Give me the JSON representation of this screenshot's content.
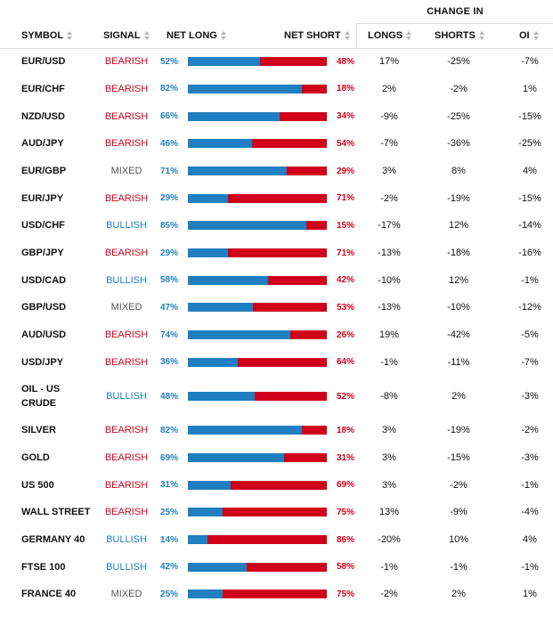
{
  "header": {
    "change_in": "CHANGE IN",
    "columns": {
      "symbol": "SYMBOL",
      "signal": "SIGNAL",
      "net_long": "NET LONG",
      "net_short": "NET SHORT",
      "longs": "LONGS",
      "shorts": "SHORTS",
      "oi": "OI"
    }
  },
  "colors": {
    "long": "#1f7fc0",
    "short": "#d0021b",
    "mixed": "#555555"
  },
  "rows": [
    {
      "symbol": "EUR/USD",
      "signal": "BEARISH",
      "net_long": "52%",
      "net_short": "48%",
      "long_fraction": 52,
      "change_longs": "17%",
      "change_shorts": "-25%",
      "change_oi": "-7%"
    },
    {
      "symbol": "EUR/CHF",
      "signal": "BEARISH",
      "net_long": "82%",
      "net_short": "18%",
      "long_fraction": 82,
      "change_longs": "2%",
      "change_shorts": "-2%",
      "change_oi": "1%"
    },
    {
      "symbol": "NZD/USD",
      "signal": "BEARISH",
      "net_long": "66%",
      "net_short": "34%",
      "long_fraction": 66,
      "change_longs": "-9%",
      "change_shorts": "-25%",
      "change_oi": "-15%"
    },
    {
      "symbol": "AUD/JPY",
      "signal": "BEARISH",
      "net_long": "46%",
      "net_short": "54%",
      "long_fraction": 46,
      "change_longs": "-7%",
      "change_shorts": "-36%",
      "change_oi": "-25%"
    },
    {
      "symbol": "EUR/GBP",
      "signal": "MIXED",
      "net_long": "71%",
      "net_short": "29%",
      "long_fraction": 71,
      "change_longs": "3%",
      "change_shorts": "8%",
      "change_oi": "4%"
    },
    {
      "symbol": "EUR/JPY",
      "signal": "BEARISH",
      "net_long": "29%",
      "net_short": "71%",
      "long_fraction": 29,
      "change_longs": "-2%",
      "change_shorts": "-19%",
      "change_oi": "-15%"
    },
    {
      "symbol": "USD/CHF",
      "signal": "BULLISH",
      "net_long": "85%",
      "net_short": "15%",
      "long_fraction": 85,
      "change_longs": "-17%",
      "change_shorts": "12%",
      "change_oi": "-14%"
    },
    {
      "symbol": "GBP/JPY",
      "signal": "BEARISH",
      "net_long": "29%",
      "net_short": "71%",
      "long_fraction": 29,
      "change_longs": "-13%",
      "change_shorts": "-18%",
      "change_oi": "-16%"
    },
    {
      "symbol": "USD/CAD",
      "signal": "BULLISH",
      "net_long": "58%",
      "net_short": "42%",
      "long_fraction": 58,
      "change_longs": "-10%",
      "change_shorts": "12%",
      "change_oi": "-1%"
    },
    {
      "symbol": "GBP/USD",
      "signal": "MIXED",
      "net_long": "47%",
      "net_short": "53%",
      "long_fraction": 47,
      "change_longs": "-13%",
      "change_shorts": "-10%",
      "change_oi": "-12%"
    },
    {
      "symbol": "AUD/USD",
      "signal": "BEARISH",
      "net_long": "74%",
      "net_short": "26%",
      "long_fraction": 74,
      "change_longs": "19%",
      "change_shorts": "-42%",
      "change_oi": "-5%"
    },
    {
      "symbol": "USD/JPY",
      "signal": "BEARISH",
      "net_long": "36%",
      "net_short": "64%",
      "long_fraction": 36,
      "change_longs": "-1%",
      "change_shorts": "-11%",
      "change_oi": "-7%"
    },
    {
      "symbol": "OIL - US CRUDE",
      "signal": "BULLISH",
      "net_long": "48%",
      "net_short": "52%",
      "long_fraction": 48,
      "change_longs": "-8%",
      "change_shorts": "2%",
      "change_oi": "-3%"
    },
    {
      "symbol": "SILVER",
      "signal": "BEARISH",
      "net_long": "82%",
      "net_short": "18%",
      "long_fraction": 82,
      "change_longs": "3%",
      "change_shorts": "-19%",
      "change_oi": "-2%"
    },
    {
      "symbol": "GOLD",
      "signal": "BEARISH",
      "net_long": "69%",
      "net_short": "31%",
      "long_fraction": 69,
      "change_longs": "3%",
      "change_shorts": "-15%",
      "change_oi": "-3%"
    },
    {
      "symbol": "US 500",
      "signal": "BEARISH",
      "net_long": "31%",
      "net_short": "69%",
      "long_fraction": 31,
      "change_longs": "3%",
      "change_shorts": "-2%",
      "change_oi": "-1%"
    },
    {
      "symbol": "WALL STREET",
      "signal": "BEARISH",
      "net_long": "25%",
      "net_short": "75%",
      "long_fraction": 25,
      "change_longs": "13%",
      "change_shorts": "-9%",
      "change_oi": "-4%"
    },
    {
      "symbol": "GERMANY 40",
      "signal": "BULLISH",
      "net_long": "14%",
      "net_short": "86%",
      "long_fraction": 14,
      "change_longs": "-20%",
      "change_shorts": "10%",
      "change_oi": "4%"
    },
    {
      "symbol": "FTSE 100",
      "signal": "BULLISH",
      "net_long": "42%",
      "net_short": "58%",
      "long_fraction": 42,
      "change_longs": "-1%",
      "change_shorts": "-1%",
      "change_oi": "-1%"
    },
    {
      "symbol": "FRANCE 40",
      "signal": "MIXED",
      "net_long": "25%",
      "net_short": "75%",
      "long_fraction": 25,
      "change_longs": "-2%",
      "change_shorts": "2%",
      "change_oi": "1%"
    }
  ]
}
